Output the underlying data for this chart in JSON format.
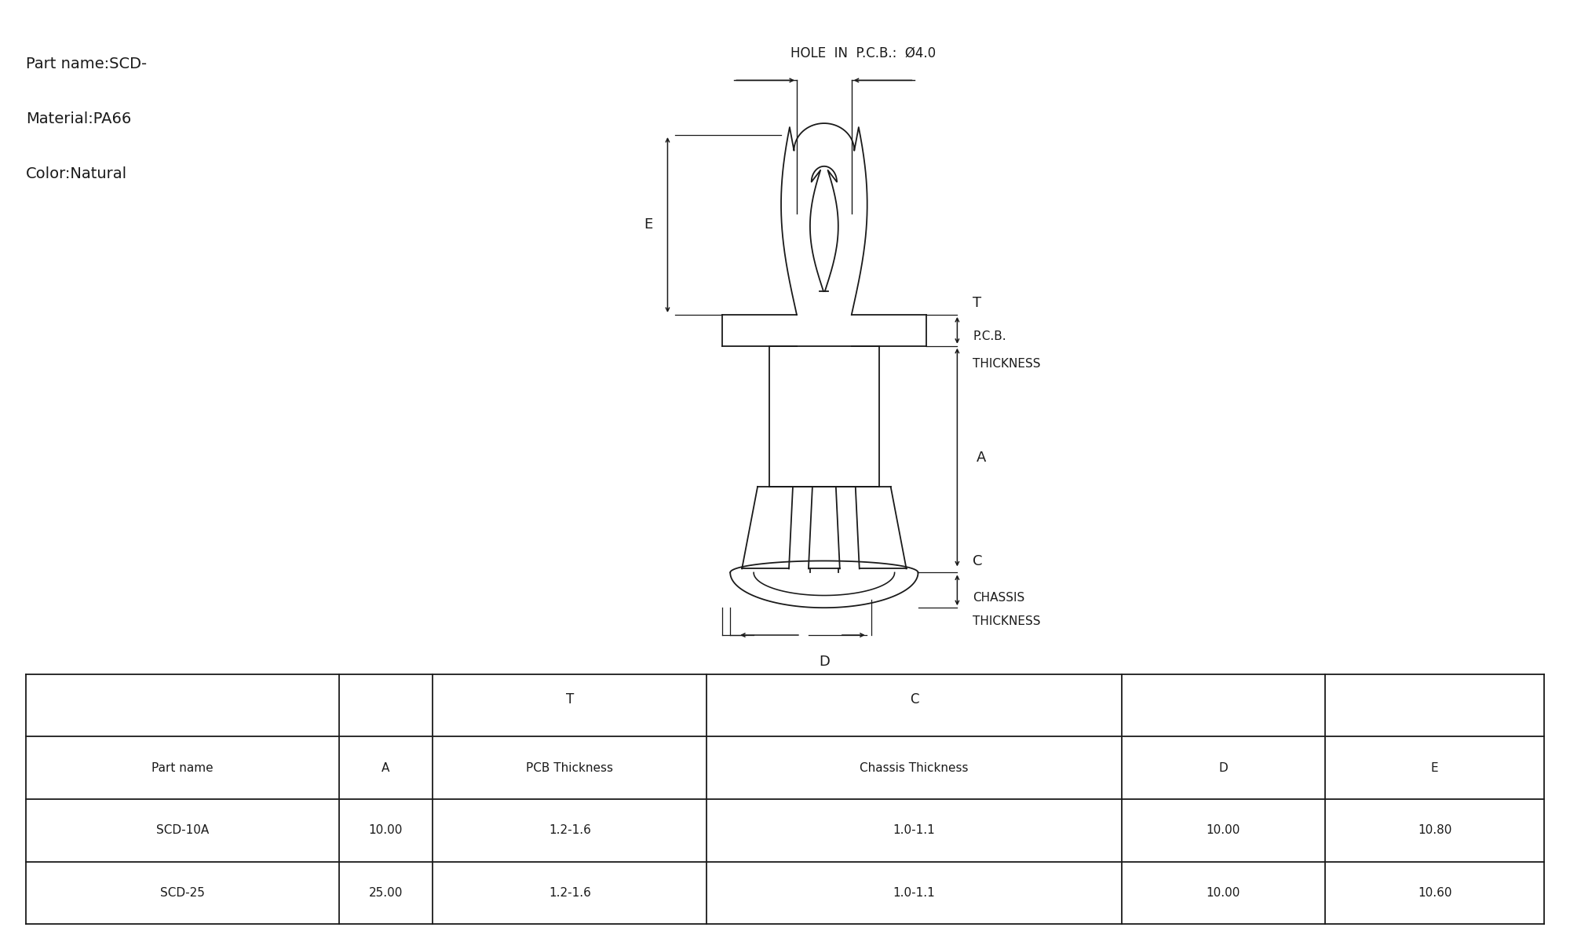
{
  "hole_label": "HOLE  IN  P.C.B.:  Ø4.0",
  "info_lines": [
    "Part name:SCD-",
    "Material:PA66",
    "Color:Natural"
  ],
  "table_headers_row1": [
    "",
    "",
    "T",
    "C",
    "",
    ""
  ],
  "table_headers_row2": [
    "Part name",
    "A",
    "PCB Thickness",
    "Chassis Thickness",
    "D",
    "E"
  ],
  "table_rows": [
    [
      "SCD-10A",
      "10.00",
      "1.2-1.6",
      "1.0-1.1",
      "10.00",
      "10.80"
    ],
    [
      "SCD-25",
      "25.00",
      "1.2-1.6",
      "1.0-1.1",
      "10.00",
      "10.60"
    ]
  ],
  "bg_color": "#ffffff",
  "line_color": "#1a1a1a",
  "text_color": "#1a1a1a"
}
